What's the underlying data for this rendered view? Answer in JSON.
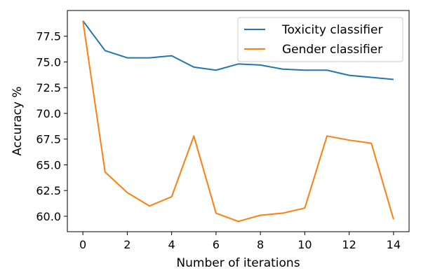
{
  "chart_data": {
    "type": "line",
    "title": "",
    "xlabel": "Number of iterations",
    "ylabel": "Accuracy %",
    "xlim": [
      -0.7,
      14.7
    ],
    "ylim": [
      58.5,
      80.0
    ],
    "x": [
      0,
      1,
      2,
      3,
      4,
      5,
      6,
      7,
      8,
      9,
      10,
      11,
      12,
      13,
      14
    ],
    "x_ticks": [
      0,
      2,
      4,
      6,
      8,
      10,
      12,
      14
    ],
    "x_tick_labels": [
      "0",
      "2",
      "4",
      "6",
      "8",
      "10",
      "12",
      "14"
    ],
    "y_ticks": [
      60.0,
      62.5,
      65.0,
      67.5,
      70.0,
      72.5,
      75.0,
      77.5
    ],
    "y_tick_labels": [
      "60.0",
      "62.5",
      "65.0",
      "67.5",
      "70.0",
      "72.5",
      "75.0",
      "77.5"
    ],
    "grid": false,
    "legend_position": "top-right",
    "series": [
      {
        "name": "Toxicity classifier",
        "color": "#1f77b4",
        "values": [
          79.0,
          76.1,
          75.4,
          75.4,
          75.6,
          74.5,
          74.2,
          74.8,
          74.7,
          74.3,
          74.2,
          74.2,
          73.7,
          73.5,
          73.3
        ]
      },
      {
        "name": "Gender classifier",
        "color": "#ff7f0e",
        "values": [
          79.0,
          64.3,
          62.3,
          61.0,
          61.9,
          67.8,
          60.3,
          59.5,
          60.1,
          60.3,
          60.8,
          67.8,
          67.4,
          67.1,
          59.7
        ]
      }
    ]
  }
}
